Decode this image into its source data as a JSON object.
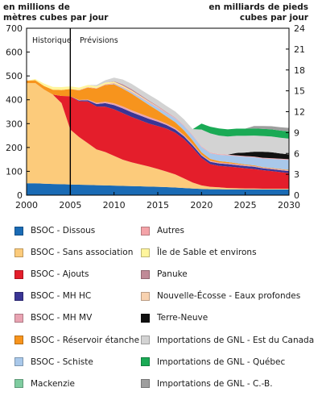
{
  "chart_data": {
    "type": "area",
    "stacked": true,
    "left_axis_label": [
      "en millions de",
      "mètres cubes par jour"
    ],
    "right_axis_label": [
      "en milliards de pieds",
      "cubes par jour"
    ],
    "ylim_left": [
      0,
      700
    ],
    "ylim_right": [
      0,
      24
    ],
    "xlim": [
      2000,
      2030
    ],
    "x_ticks": [
      "2000",
      "2005",
      "2010",
      "2015",
      "2020",
      "2025",
      "2030"
    ],
    "y_ticks_left": [
      "0",
      "100",
      "200",
      "300",
      "400",
      "500",
      "600",
      "700"
    ],
    "y_ticks_right": [
      "0",
      "3",
      "6",
      "9",
      "12",
      "15",
      "18",
      "21",
      "24"
    ],
    "period_labels": {
      "historic": "Historique",
      "forecast": "Prévisions",
      "split_year": 2005
    },
    "grid": false,
    "x": [
      2000,
      2001,
      2002,
      2003,
      2004,
      2005,
      2006,
      2007,
      2008,
      2009,
      2010,
      2011,
      2012,
      2013,
      2014,
      2015,
      2016,
      2017,
      2018,
      2019,
      2020,
      2021,
      2022,
      2023,
      2024,
      2025,
      2026,
      2027,
      2028,
      2029,
      2030
    ],
    "series": [
      {
        "name": "BSOC - Dissous",
        "color": "#1a6bb5",
        "values": [
          50,
          50,
          48,
          47,
          46,
          45,
          44,
          43,
          42,
          41,
          40,
          39,
          38,
          37,
          36,
          35,
          34,
          32,
          30,
          28,
          26,
          25,
          25,
          24,
          24,
          24,
          24,
          24,
          24,
          24,
          24
        ]
      },
      {
        "name": "BSOC - Sans association",
        "color": "#fccb7b",
        "values": [
          420,
          420,
          395,
          375,
          340,
          230,
          200,
          175,
          150,
          140,
          125,
          110,
          100,
          92,
          84,
          75,
          65,
          55,
          40,
          25,
          15,
          10,
          8,
          6,
          5,
          4,
          4,
          3,
          3,
          3,
          3
        ]
      },
      {
        "name": "BSOC - Ajouts",
        "color": "#e41e2b",
        "values": [
          0,
          0,
          0,
          0,
          30,
          140,
          150,
          175,
          180,
          190,
          195,
          195,
          190,
          185,
          180,
          180,
          180,
          175,
          165,
          145,
          115,
          95,
          90,
          90,
          88,
          85,
          82,
          78,
          74,
          70,
          66
        ]
      },
      {
        "name": "BSOC - MH HC",
        "color": "#3a3595",
        "values": [
          0,
          0,
          0,
          0,
          0,
          0,
          3,
          5,
          10,
          15,
          18,
          20,
          20,
          20,
          20,
          18,
          15,
          13,
          12,
          11,
          10,
          10,
          10,
          10,
          9,
          9,
          9,
          8,
          8,
          8,
          8
        ]
      },
      {
        "name": "BSOC - MH MV",
        "color": "#e9a3b2",
        "values": [
          0,
          0,
          0,
          0,
          0,
          0,
          2,
          3,
          5,
          6,
          7,
          8,
          8,
          8,
          8,
          7,
          6,
          6,
          5,
          5,
          4,
          4,
          4,
          4,
          4,
          4,
          3,
          3,
          3,
          3,
          3
        ]
      },
      {
        "name": "BSOC - Réservoir étanche",
        "color": "#f7941d",
        "values": [
          10,
          12,
          15,
          20,
          25,
          30,
          40,
          50,
          60,
          70,
          80,
          75,
          70,
          60,
          50,
          40,
          30,
          25,
          20,
          15,
          10,
          8,
          6,
          5,
          4,
          3,
          3,
          2,
          2,
          2,
          2
        ]
      },
      {
        "name": "BSOC - Schiste",
        "color": "#a9c8ea",
        "values": [
          0,
          0,
          0,
          0,
          0,
          0,
          0,
          0,
          0,
          0,
          2,
          4,
          6,
          8,
          10,
          12,
          14,
          16,
          18,
          20,
          22,
          24,
          26,
          28,
          30,
          32,
          34,
          36,
          38,
          40,
          42
        ]
      },
      {
        "name": "Mackenzie",
        "color": "#7fcca0",
        "values": [
          0,
          0,
          0,
          0,
          0,
          0,
          0,
          0,
          0,
          0,
          0,
          0,
          0,
          0,
          0,
          0,
          0,
          0,
          0,
          0,
          0,
          0,
          0,
          0,
          0,
          0,
          0,
          0,
          0,
          0,
          0
        ]
      },
      {
        "name": "Autres",
        "color": "#f4a3a8",
        "values": [
          0,
          0,
          0,
          0,
          0,
          0,
          2,
          2,
          2,
          3,
          3,
          3,
          3,
          3,
          3,
          3,
          3,
          3,
          3,
          3,
          3,
          3,
          3,
          3,
          3,
          3,
          3,
          3,
          3,
          3,
          3
        ]
      },
      {
        "name": "Île de Sable et environs",
        "color": "#fff59d",
        "values": [
          0,
          5,
          10,
          12,
          12,
          11,
          10,
          9,
          8,
          7,
          6,
          5,
          4,
          3,
          2,
          1,
          0,
          0,
          0,
          0,
          0,
          0,
          0,
          0,
          0,
          0,
          0,
          0,
          0,
          0,
          0
        ]
      },
      {
        "name": "Panuke",
        "color": "#c08a97",
        "values": [
          0,
          0,
          0,
          0,
          0,
          0,
          0,
          0,
          0,
          0,
          2,
          6,
          6,
          5,
          4,
          3,
          2,
          1,
          0,
          0,
          0,
          0,
          0,
          0,
          0,
          0,
          0,
          0,
          0,
          0,
          0
        ]
      },
      {
        "name": "Nouvelle-Écosse - Eaux profondes",
        "color": "#f8d2b0",
        "values": [
          0,
          0,
          0,
          0,
          0,
          0,
          0,
          0,
          0,
          0,
          0,
          0,
          0,
          0,
          0,
          0,
          0,
          0,
          0,
          0,
          0,
          0,
          0,
          0,
          0,
          0,
          0,
          0,
          0,
          0,
          0
        ]
      },
      {
        "name": "Terre-Neuve",
        "color": "#111111",
        "values": [
          0,
          0,
          0,
          0,
          0,
          0,
          0,
          0,
          0,
          0,
          0,
          0,
          0,
          0,
          0,
          0,
          0,
          0,
          0,
          0,
          0,
          0,
          0,
          0,
          10,
          15,
          20,
          25,
          25,
          22,
          20
        ]
      },
      {
        "name": "Importations de GNL - Est du Canada",
        "color": "#d3d3d3",
        "values": [
          0,
          0,
          0,
          0,
          0,
          0,
          0,
          0,
          5,
          10,
          15,
          20,
          22,
          23,
          24,
          25,
          25,
          25,
          25,
          25,
          70,
          80,
          78,
          76,
          72,
          70,
          68,
          66,
          66,
          66,
          66
        ]
      },
      {
        "name": "Importations de GNL - Québec",
        "color": "#1aaa55",
        "values": [
          0,
          0,
          0,
          0,
          0,
          0,
          0,
          0,
          0,
          0,
          0,
          0,
          0,
          0,
          0,
          0,
          0,
          0,
          0,
          0,
          25,
          28,
          30,
          30,
          30,
          30,
          30,
          30,
          30,
          30,
          30
        ]
      },
      {
        "name": "Importations de GNL - C.-B.",
        "color": "#9e9e9e",
        "values": [
          0,
          0,
          0,
          0,
          0,
          0,
          0,
          0,
          0,
          0,
          0,
          0,
          0,
          0,
          0,
          0,
          0,
          0,
          0,
          0,
          0,
          0,
          0,
          0,
          0,
          0,
          10,
          12,
          13,
          14,
          15
        ]
      }
    ],
    "legend": {
      "left": [
        "BSOC - Dissous",
        "BSOC - Sans association",
        "BSOC - Ajouts",
        "BSOC - MH HC",
        "BSOC - MH MV",
        "BSOC - Réservoir étanche",
        "BSOC - Schiste",
        "Mackenzie"
      ],
      "right": [
        "Autres",
        "Île de Sable et environs",
        "Panuke",
        "Nouvelle-Écosse - Eaux profondes",
        "Terre-Neuve",
        "Importations de GNL - Est du Canada",
        "Importations de GNL - Québec",
        "Importations de GNL - C.-B."
      ]
    }
  }
}
